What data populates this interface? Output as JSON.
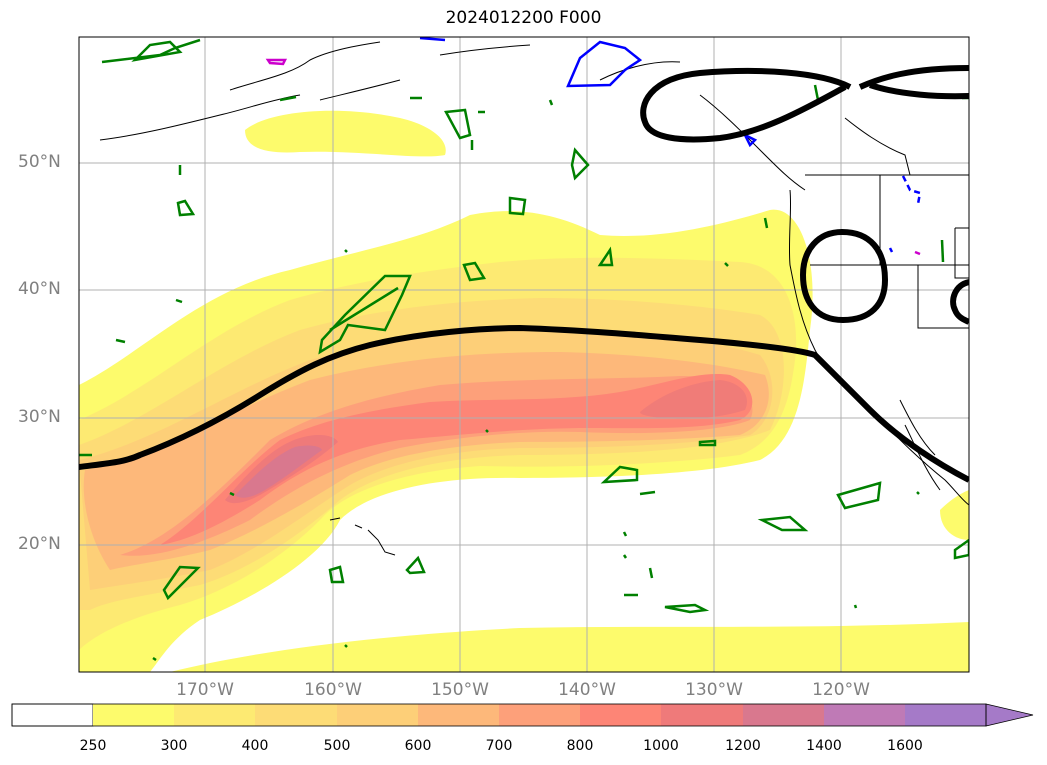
{
  "title": "2024012200 F000",
  "lat_labels": [
    "50°N",
    "40°N",
    "30°N",
    "20°N"
  ],
  "lon_labels": [
    "170°W",
    "160°W",
    "150°W",
    "140°W",
    "130°W",
    "120°W"
  ],
  "colorbar": {
    "labels": [
      "250",
      "300",
      "400",
      "500",
      "600",
      "700",
      "800",
      "1000",
      "1200",
      "1400",
      "1600"
    ],
    "colors": [
      "#ffffff",
      "#fdfb6c",
      "#fdea72",
      "#fddc76",
      "#fdcf78",
      "#fdb87a",
      "#fda07a",
      "#fd8576",
      "#ef7a7a",
      "#d9788e",
      "#bf7ab6",
      "#a57ac8"
    ],
    "extend": "max"
  },
  "contour_colors": {
    "thick_line": "#000000",
    "green": "#008000",
    "blue": "#0000ff",
    "magenta": "#cc00cc"
  }
}
